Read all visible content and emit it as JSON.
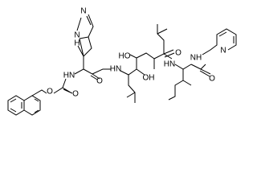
{
  "atoms": [
    {
      "label": "N"
    },
    {
      "label": "N"
    },
    {
      "label": "H"
    },
    {
      "label": "HN"
    },
    {
      "label": "O"
    },
    {
      "label": "O"
    },
    {
      "label": "O"
    },
    {
      "label": "HN"
    },
    {
      "label": "HO"
    },
    {
      "label": "OH"
    },
    {
      "label": "O"
    },
    {
      "label": "HN"
    },
    {
      "label": "NH"
    },
    {
      "label": "O"
    },
    {
      "label": "N"
    }
  ]
}
